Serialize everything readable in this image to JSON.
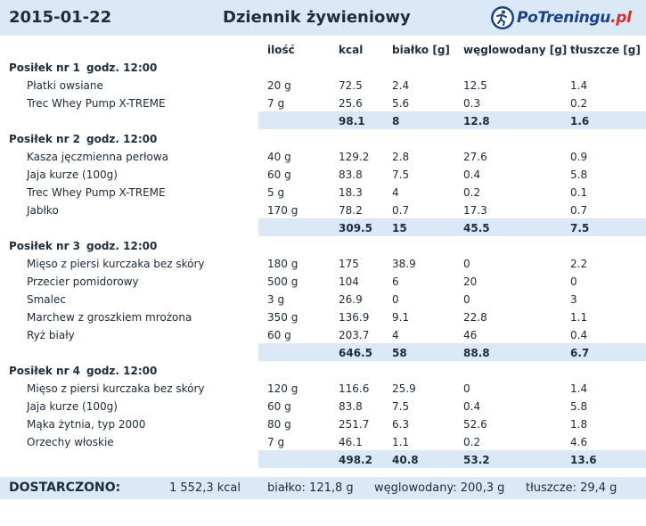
{
  "header": {
    "date": "2015-01-22",
    "title": "Dziennik żywieniowy",
    "logo_main": "PoTreningu",
    "logo_tld": ".pl"
  },
  "columns": [
    "ilość",
    "kcal",
    "białko [g]",
    "węglowodany [g]",
    "tłuszcze [g]"
  ],
  "meals": [
    {
      "name": "Posiłek nr 1",
      "time": "godz. 12:00",
      "items": [
        {
          "name": "Płatki owsiane",
          "qty": "20 g",
          "kcal": "72.5",
          "protein": "2.4",
          "carbs": "12.5",
          "fat": "1.4"
        },
        {
          "name": "Trec Whey Pump X-TREME",
          "qty": "7 g",
          "kcal": "25.6",
          "protein": "5.6",
          "carbs": "0.3",
          "fat": "0.2"
        }
      ],
      "total": {
        "kcal": "98.1",
        "protein": "8",
        "carbs": "12.8",
        "fat": "1.6"
      }
    },
    {
      "name": "Posiłek nr 2",
      "time": "godz. 12:00",
      "items": [
        {
          "name": "Kasza jęczmienna perłowa",
          "qty": "40 g",
          "kcal": "129.2",
          "protein": "2.8",
          "carbs": "27.6",
          "fat": "0.9"
        },
        {
          "name": "Jaja kurze (100g)",
          "qty": "60 g",
          "kcal": "83.8",
          "protein": "7.5",
          "carbs": "0.4",
          "fat": "5.8"
        },
        {
          "name": "Trec Whey Pump X-TREME",
          "qty": "5 g",
          "kcal": "18.3",
          "protein": "4",
          "carbs": "0.2",
          "fat": "0.1"
        },
        {
          "name": "Jabłko",
          "qty": "170 g",
          "kcal": "78.2",
          "protein": "0.7",
          "carbs": "17.3",
          "fat": "0.7"
        }
      ],
      "total": {
        "kcal": "309.5",
        "protein": "15",
        "carbs": "45.5",
        "fat": "7.5"
      }
    },
    {
      "name": "Posiłek nr 3",
      "time": "godz. 12:00",
      "items": [
        {
          "name": "Mięso z piersi kurczaka bez skóry",
          "qty": "180 g",
          "kcal": "175",
          "protein": "38.9",
          "carbs": "0",
          "fat": "2.2"
        },
        {
          "name": "Przecier pomidorowy",
          "qty": "500 g",
          "kcal": "104",
          "protein": "6",
          "carbs": "20",
          "fat": "0"
        },
        {
          "name": "Smalec",
          "qty": "3 g",
          "kcal": "26.9",
          "protein": "0",
          "carbs": "0",
          "fat": "3"
        },
        {
          "name": "Marchew z groszkiem mrożona",
          "qty": "350 g",
          "kcal": "136.9",
          "protein": "9.1",
          "carbs": "22.8",
          "fat": "1.1"
        },
        {
          "name": "Ryż biały",
          "qty": "60 g",
          "kcal": "203.7",
          "protein": "4",
          "carbs": "46",
          "fat": "0.4"
        }
      ],
      "total": {
        "kcal": "646.5",
        "protein": "58",
        "carbs": "88.8",
        "fat": "6.7"
      }
    },
    {
      "name": "Posiłek nr 4",
      "time": "godz. 12:00",
      "items": [
        {
          "name": "Mięso z piersi kurczaka bez skóry",
          "qty": "120 g",
          "kcal": "116.6",
          "protein": "25.9",
          "carbs": "0",
          "fat": "1.4"
        },
        {
          "name": "Jaja kurze (100g)",
          "qty": "60 g",
          "kcal": "83.8",
          "protein": "7.5",
          "carbs": "0.4",
          "fat": "5.8"
        },
        {
          "name": "Mąka żytnia, typ 2000",
          "qty": "80 g",
          "kcal": "251.7",
          "protein": "6.3",
          "carbs": "52.6",
          "fat": "1.8"
        },
        {
          "name": "Orzechy włoskie",
          "qty": "7 g",
          "kcal": "46.1",
          "protein": "1.1",
          "carbs": "0.2",
          "fat": "4.6"
        }
      ],
      "total": {
        "kcal": "498.2",
        "protein": "40.8",
        "carbs": "53.2",
        "fat": "13.6"
      }
    }
  ],
  "footer": {
    "label": "DOSTARCZONO:",
    "kcal": "1 552,3 kcal",
    "protein": "białko: 121,8 g",
    "carbs": "węglowodany: 200,3 g",
    "fat": "tłuszcze: 29,4 g"
  }
}
